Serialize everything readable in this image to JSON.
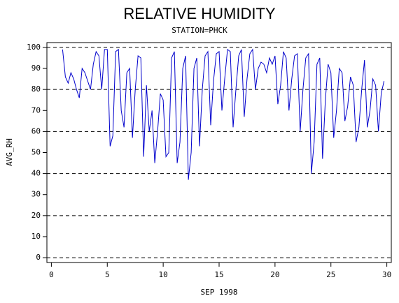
{
  "chart_data": {
    "type": "line",
    "title": "RELATIVE HUMIDITY",
    "subtitle": "STATION=PHCK",
    "x_label": "SEP 1998",
    "y_label": "AVG_RH",
    "xlim": [
      -0.4,
      30.4
    ],
    "ylim": [
      -2.3,
      102.3
    ],
    "xticks": [
      0,
      5,
      10,
      15,
      20,
      25,
      30
    ],
    "yticks": [
      0,
      10,
      20,
      30,
      40,
      50,
      60,
      70,
      80,
      90,
      100
    ],
    "hlines": [
      0,
      20,
      40,
      60,
      80,
      100
    ],
    "x": [
      1,
      1.25,
      1.5,
      1.75,
      2,
      2.25,
      2.5,
      2.75,
      3,
      3.25,
      3.5,
      3.75,
      4,
      4.25,
      4.5,
      4.75,
      5,
      5.25,
      5.5,
      5.75,
      6,
      6.25,
      6.5,
      6.75,
      7,
      7.25,
      7.5,
      7.75,
      8,
      8.25,
      8.5,
      8.75,
      9,
      9.25,
      9.5,
      9.75,
      10,
      10.25,
      10.5,
      10.75,
      11,
      11.25,
      11.5,
      11.75,
      12,
      12.25,
      12.5,
      12.75,
      13,
      13.25,
      13.5,
      13.75,
      14,
      14.25,
      14.5,
      14.75,
      15,
      15.25,
      15.5,
      15.75,
      16,
      16.25,
      16.5,
      16.75,
      17,
      17.25,
      17.5,
      17.75,
      18,
      18.25,
      18.5,
      18.75,
      19,
      19.25,
      19.5,
      19.75,
      20,
      20.25,
      20.5,
      20.75,
      21,
      21.25,
      21.5,
      21.75,
      22,
      22.25,
      22.5,
      22.75,
      23,
      23.25,
      23.5,
      23.75,
      24,
      24.25,
      24.5,
      24.75,
      25,
      25.25,
      25.5,
      25.75,
      26,
      26.25,
      26.5,
      26.75,
      27,
      27.25,
      27.5,
      27.75,
      28,
      28.25,
      28.5,
      28.75,
      29,
      29.25,
      29.5,
      29.75
    ],
    "series": [
      {
        "color": "#0000cc",
        "values": [
          99,
          86,
          83,
          88,
          85,
          80,
          76,
          90,
          88,
          84,
          80,
          92,
          98,
          96,
          80,
          99,
          99,
          53,
          58,
          98,
          99,
          70,
          62,
          88,
          90,
          57,
          80,
          96,
          95,
          48,
          82,
          60,
          70,
          45,
          60,
          78,
          75,
          48,
          50,
          95,
          98,
          45,
          55,
          90,
          96,
          37,
          50,
          90,
          95,
          53,
          80,
          96,
          98,
          63,
          84,
          97,
          98,
          70,
          85,
          99,
          98,
          62,
          80,
          96,
          99,
          67,
          85,
          97,
          99,
          80,
          90,
          93,
          92,
          88,
          95,
          92,
          96,
          73,
          82,
          98,
          95,
          70,
          85,
          96,
          97,
          60,
          80,
          95,
          97,
          40,
          55,
          92,
          95,
          47,
          75,
          92,
          88,
          57,
          70,
          90,
          88,
          65,
          72,
          86,
          82,
          55,
          62,
          80,
          94,
          62,
          70,
          85,
          82,
          60,
          78,
          84
        ]
      }
    ]
  }
}
